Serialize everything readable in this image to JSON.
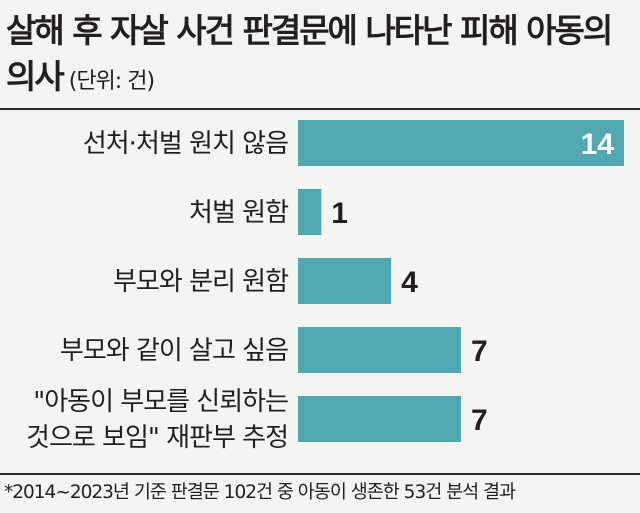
{
  "header": {
    "title": "살해 후 자살 사건 판결문에 나타난 피해 아동의 의사",
    "unit": "(단위: 건)"
  },
  "footnote": "*2014~2023년 기준 판결문 102건 중 아동이 생존한 53건 분석 결과",
  "colors": {
    "bar": "#4fa8b2",
    "text": "#231f20",
    "value_inside": "#ffffff"
  },
  "chart_data": {
    "type": "bar",
    "orientation": "horizontal",
    "categories": [
      [
        "선처·처벌 원치 않음"
      ],
      [
        "처벌 원함"
      ],
      [
        "부모와 분리 원함"
      ],
      [
        "부모와 같이 살고 싶음"
      ],
      [
        "\"아동이 부모를 신뢰하는",
        "것으로 보임\" 재판부 추정"
      ]
    ],
    "values": [
      14,
      1,
      4,
      7,
      7
    ],
    "xlim": [
      0,
      14
    ],
    "grid": false,
    "legend": "none"
  }
}
